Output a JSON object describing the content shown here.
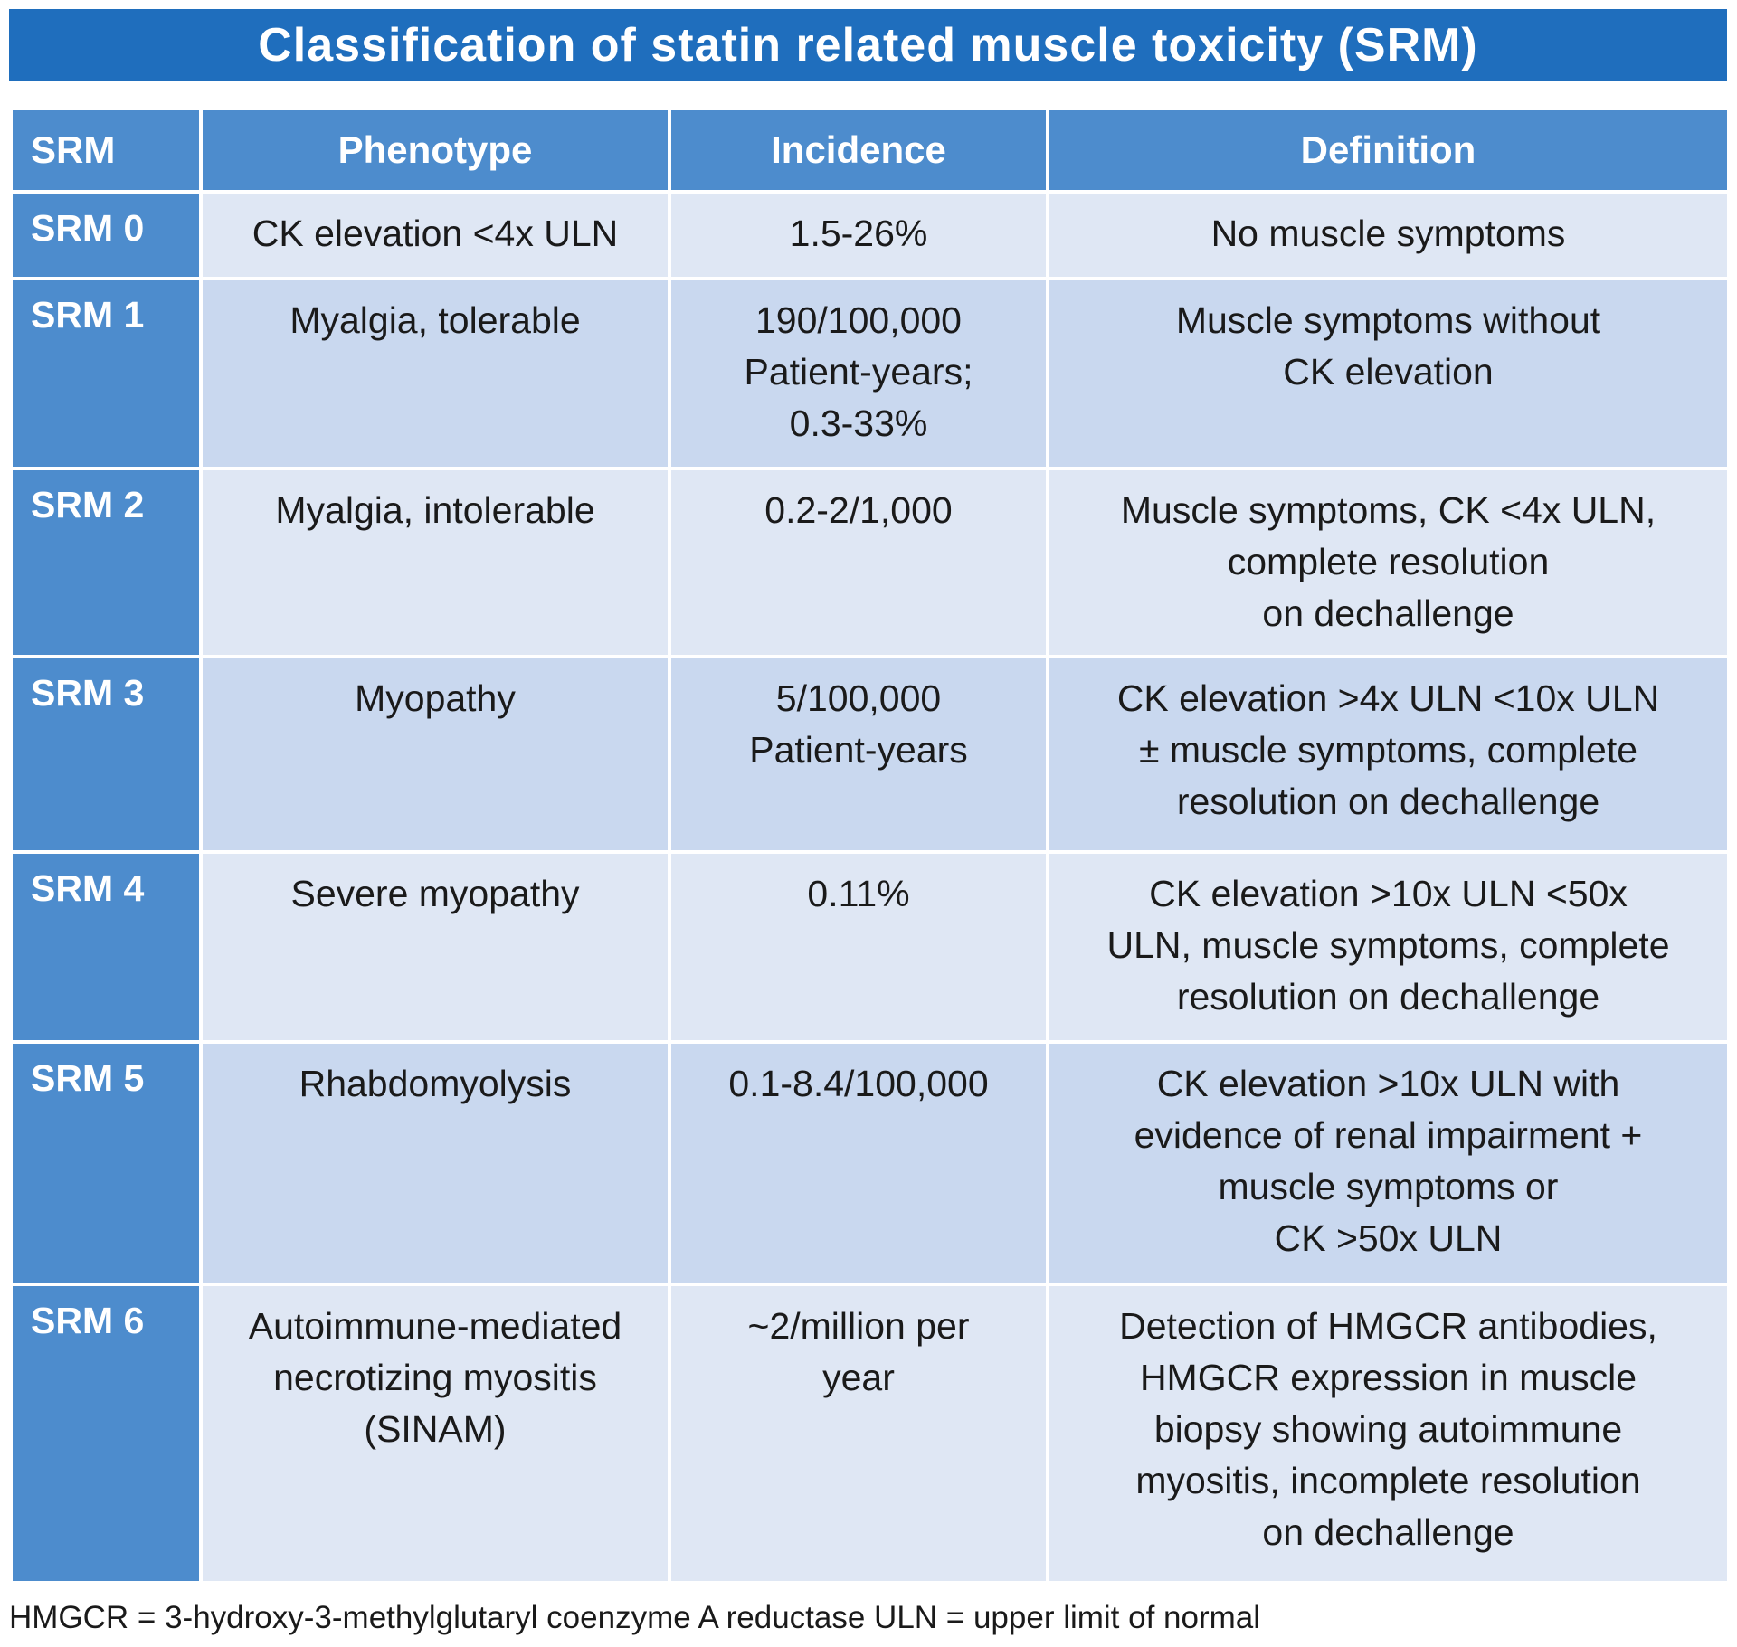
{
  "title": "Classification of statin related muscle toxicity (SRM)",
  "headers": [
    "SRM",
    "Phenotype",
    "Incidence",
    "Definition"
  ],
  "rows": [
    {
      "srm": "SRM 0",
      "phenotype": [
        "CK elevation <4x ULN"
      ],
      "incidence": [
        "1.5-26%"
      ],
      "definition": [
        "No muscle symptoms"
      ]
    },
    {
      "srm": "SRM 1",
      "phenotype": [
        "Myalgia, tolerable"
      ],
      "incidence": [
        "190/100,000",
        "Patient-years;",
        "0.3-33%"
      ],
      "definition": [
        "Muscle symptoms without",
        "CK elevation"
      ]
    },
    {
      "srm": "SRM 2",
      "phenotype": [
        "Myalgia, intolerable"
      ],
      "incidence": [
        "0.2-2/1,000"
      ],
      "definition": [
        "Muscle symptoms, CK <4x ULN,",
        "complete resolution",
        "on dechallenge"
      ]
    },
    {
      "srm": "SRM 3",
      "phenotype": [
        "Myopathy"
      ],
      "incidence": [
        "5/100,000",
        "Patient-years"
      ],
      "definition": [
        "CK elevation >4x ULN <10x ULN",
        "± muscle symptoms, complete",
        "resolution on dechallenge"
      ]
    },
    {
      "srm": "SRM 4",
      "phenotype": [
        "Severe myopathy"
      ],
      "incidence": [
        "0.11%"
      ],
      "definition": [
        "CK elevation >10x ULN <50x",
        "ULN, muscle symptoms, complete",
        "resolution on dechallenge"
      ]
    },
    {
      "srm": "SRM 5",
      "phenotype": [
        "Rhabdomyolysis"
      ],
      "incidence": [
        "0.1-8.4/100,000"
      ],
      "definition": [
        "CK elevation >10x ULN with",
        "evidence of renal impairment +",
        "muscle symptoms or",
        "CK >50x ULN"
      ]
    },
    {
      "srm": "SRM 6",
      "phenotype": [
        "Autoimmune-mediated",
        "necrotizing myositis",
        "(SINAM)"
      ],
      "incidence": [
        "~2/million per",
        "year"
      ],
      "definition": [
        "Detection of HMGCR antibodies,",
        "HMGCR expression in muscle",
        "biopsy showing autoimmune",
        "myositis, incomplete resolution",
        "on dechallenge"
      ]
    }
  ],
  "footnote": "HMGCR = 3-hydroxy-3-methylglutaryl coenzyme A reductase ULN = upper limit of normal",
  "colors": {
    "title_bg": "#1f6ebd",
    "header_bg": "#4d8ccd",
    "row_light": "#dfe7f4",
    "row_dark": "#c9d8ef"
  }
}
